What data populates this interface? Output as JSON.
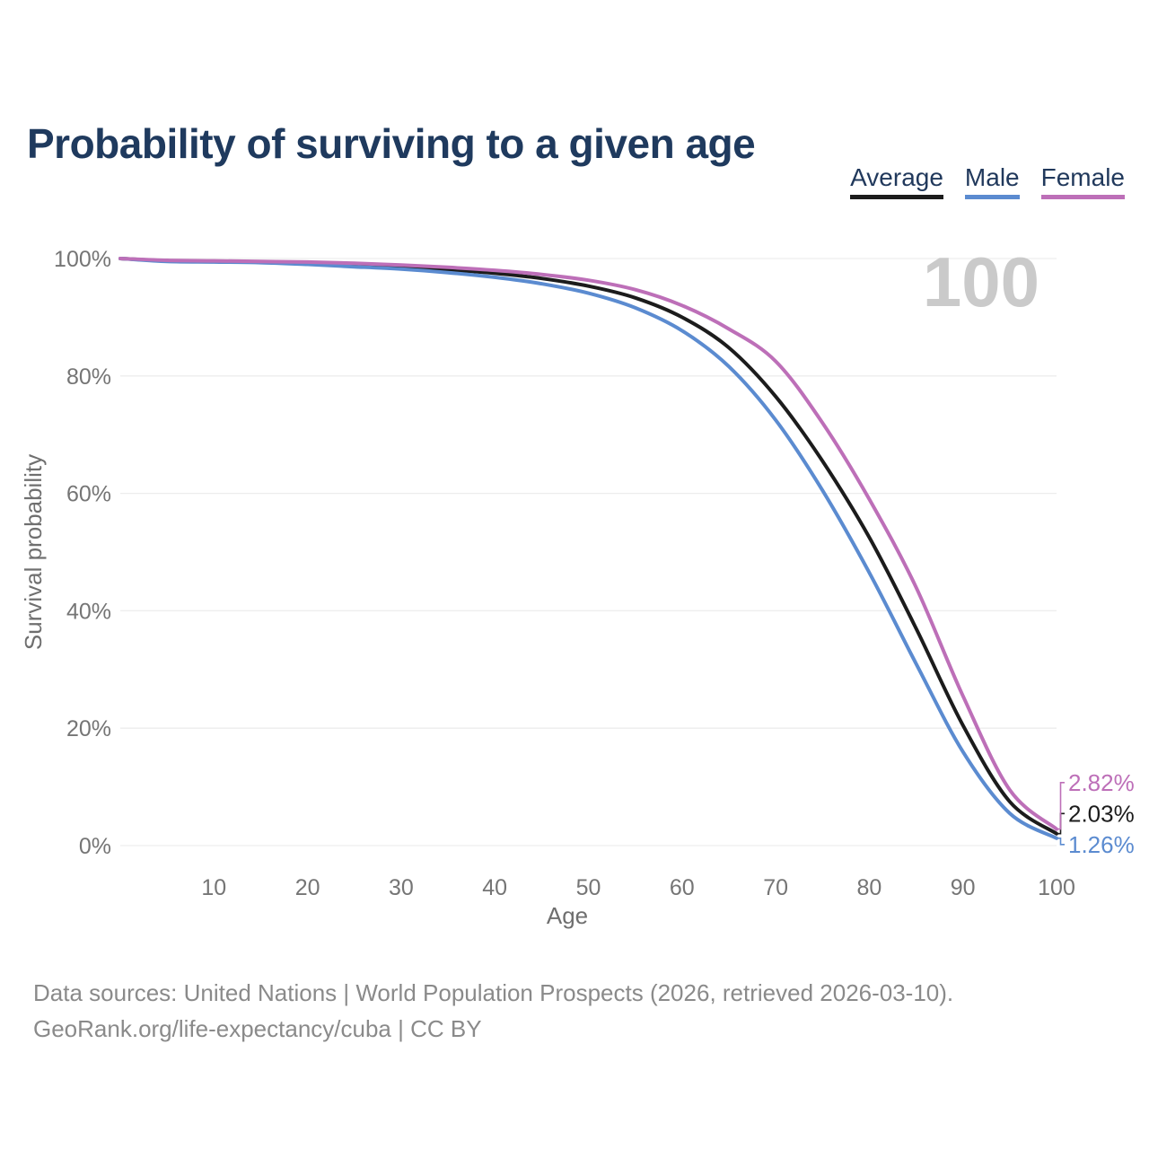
{
  "header": {
    "title": "Probability of surviving to a given age"
  },
  "legend": {
    "items": [
      {
        "label": "Average",
        "color": "#1c1c1c"
      },
      {
        "label": "Male",
        "color": "#5b8bd0"
      },
      {
        "label": "Female",
        "color": "#bd6fb8"
      }
    ]
  },
  "chart_data": {
    "type": "line",
    "title": "Probability of surviving to a given age",
    "xlabel": "Age",
    "ylabel": "Survival probability",
    "watermark": "100",
    "xlim": [
      0,
      100
    ],
    "ylim": [
      0,
      100
    ],
    "grid": "horizontal",
    "legend_position": "top-right",
    "x_ticks": [
      {
        "label": "10",
        "value": 10
      },
      {
        "label": "20",
        "value": 20
      },
      {
        "label": "30",
        "value": 30
      },
      {
        "label": "40",
        "value": 40
      },
      {
        "label": "50",
        "value": 50
      },
      {
        "label": "60",
        "value": 60
      },
      {
        "label": "70",
        "value": 70
      },
      {
        "label": "80",
        "value": 80
      },
      {
        "label": "90",
        "value": 90
      },
      {
        "label": "100",
        "value": 100
      }
    ],
    "y_ticks": [
      {
        "label": "0%",
        "value": 0
      },
      {
        "label": "20%",
        "value": 20
      },
      {
        "label": "40%",
        "value": 40
      },
      {
        "label": "60%",
        "value": 60
      },
      {
        "label": "80%",
        "value": 80
      },
      {
        "label": "100%",
        "value": 100
      }
    ],
    "x": [
      0,
      5,
      10,
      15,
      20,
      25,
      30,
      35,
      40,
      45,
      50,
      55,
      60,
      65,
      70,
      75,
      80,
      85,
      90,
      95,
      100
    ],
    "series": [
      {
        "name": "Average",
        "color": "#1c1c1c",
        "end_label": "2.03%",
        "values": [
          100,
          99.6,
          99.5,
          99.4,
          99.2,
          98.9,
          98.6,
          98.1,
          97.5,
          96.6,
          95.3,
          93.3,
          90.0,
          84.8,
          76.5,
          65.5,
          52.5,
          37.0,
          20.5,
          7.5,
          2.03
        ]
      },
      {
        "name": "Male",
        "color": "#5b8bd0",
        "end_label": "1.26%",
        "values": [
          100,
          99.5,
          99.4,
          99.3,
          99.0,
          98.6,
          98.2,
          97.6,
          96.8,
          95.7,
          94.1,
          91.6,
          87.7,
          81.6,
          72.5,
          60.5,
          46.5,
          31.0,
          16.0,
          5.5,
          1.26
        ]
      },
      {
        "name": "Female",
        "color": "#bd6fb8",
        "end_label": "2.82%",
        "values": [
          100,
          99.7,
          99.6,
          99.5,
          99.4,
          99.2,
          98.9,
          98.5,
          98.0,
          97.3,
          96.3,
          94.7,
          92.0,
          88.0,
          82.5,
          72.0,
          59.0,
          44.0,
          25.5,
          9.5,
          2.82
        ]
      }
    ]
  },
  "footer": {
    "line1": "Data sources: United Nations | World Population Prospects (2026, retrieved 2026-03-10).",
    "line2": "GeoRank.org/life-expectancy/cuba | CC BY"
  },
  "colors": {
    "title": "#1f3a5e",
    "average": "#1c1c1c",
    "male": "#5b8bd0",
    "female": "#bd6fb8",
    "gridline": "#ededed",
    "axis_text": "#757575",
    "footer_text": "#8a8a8a",
    "watermark": "#cacaca"
  }
}
